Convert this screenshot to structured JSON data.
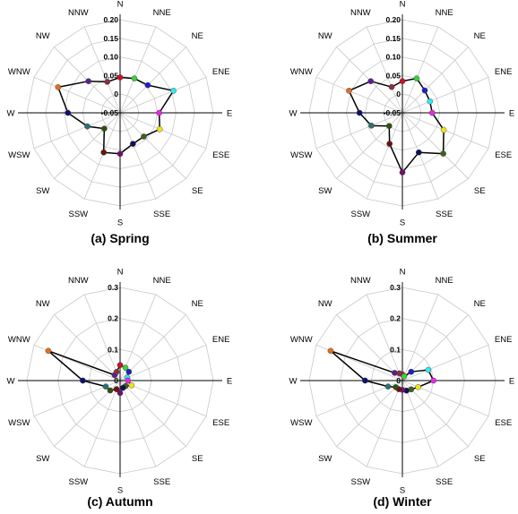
{
  "chart_data": [
    {
      "type": "radar",
      "caption": "(a) Spring",
      "directions": [
        "N",
        "NNE",
        "NE",
        "ENE",
        "E",
        "ESE",
        "SE",
        "SSE",
        "S",
        "SSW",
        "SW",
        "WSW",
        "W",
        "WNW",
        "NW",
        "NNW"
      ],
      "rmin": -0.05,
      "rmax": 0.2,
      "ticks": [
        -0.05,
        0,
        0.05,
        0.1,
        0.15,
        0.2
      ],
      "tick_labels": [
        "-0.05",
        "0",
        "0.05",
        "0.10",
        "0.15",
        "0.20"
      ],
      "grid": true,
      "legend": "none",
      "values": [
        0.045,
        0.05,
        0.055,
        0.105,
        0.055,
        0.065,
        0.04,
        0.04,
        0.06,
        0.065,
        0.01,
        0.045,
        0.09,
        0.13,
        0.07,
        0.04
      ]
    },
    {
      "type": "radar",
      "caption": "(b) Summer",
      "directions": [
        "N",
        "NNE",
        "NE",
        "ENE",
        "E",
        "ESE",
        "SE",
        "SSE",
        "S",
        "SSW",
        "SW",
        "WSW",
        "W",
        "WNW",
        "NW",
        "NNW"
      ],
      "rmin": -0.05,
      "rmax": 0.2,
      "ticks": [
        -0.05,
        0,
        0.05,
        0.1,
        0.15,
        0.2
      ],
      "tick_labels": [
        "-0.05",
        "0",
        "0.05",
        "0.10",
        "0.15",
        "0.20"
      ],
      "grid": true,
      "legend": "none",
      "values": [
        0.035,
        0.05,
        0.035,
        0.03,
        0.03,
        0.07,
        0.105,
        0.065,
        0.11,
        0.04,
        0.0,
        0.04,
        0.065,
        0.105,
        0.07,
        0.025
      ]
    },
    {
      "type": "radar",
      "caption": "(c) Autumn",
      "directions": [
        "N",
        "NNE",
        "NE",
        "ENE",
        "E",
        "ESE",
        "SE",
        "SSE",
        "S",
        "SSW",
        "SW",
        "WSW",
        "W",
        "WNW",
        "NW",
        "NNW"
      ],
      "rmin": 0,
      "rmax": 0.3,
      "ticks": [
        0,
        0.1,
        0.2,
        0.3
      ],
      "tick_labels": [
        "0",
        "0.1",
        "0.2",
        "0.3"
      ],
      "grid": true,
      "legend": "none",
      "values": [
        0.05,
        0.045,
        0.04,
        0.025,
        0.025,
        0.04,
        0.025,
        0.025,
        0.04,
        0.03,
        0.045,
        0.05,
        0.12,
        0.25,
        0.025,
        0.03
      ]
    },
    {
      "type": "radar",
      "caption": "(d) Winter",
      "directions": [
        "N",
        "NNE",
        "NE",
        "ENE",
        "E",
        "ESE",
        "SE",
        "SSE",
        "S",
        "SSW",
        "SW",
        "WSW",
        "W",
        "WNW",
        "NW",
        "NNW"
      ],
      "rmin": 0,
      "rmax": 0.3,
      "ticks": [
        0,
        0.1,
        0.2,
        0.3
      ],
      "tick_labels": [
        "0",
        "0.1",
        "0.2",
        "0.3"
      ],
      "grid": true,
      "legend": "none",
      "values": [
        0.02,
        0.015,
        0.04,
        0.09,
        0.1,
        0.055,
        0.04,
        0.035,
        0.03,
        0.03,
        0.03,
        0.05,
        0.12,
        0.25,
        0.035,
        0.025
      ]
    }
  ],
  "marker_colors": [
    "#d0102a",
    "#3cd03c",
    "#2020c8",
    "#30e8f0",
    "#e828e8",
    "#f0e020",
    "#406020",
    "#101058",
    "#701070",
    "#701010",
    "#305010",
    "#307070",
    "#101070",
    "#e07020",
    "#5a2090",
    "#8a3040"
  ]
}
